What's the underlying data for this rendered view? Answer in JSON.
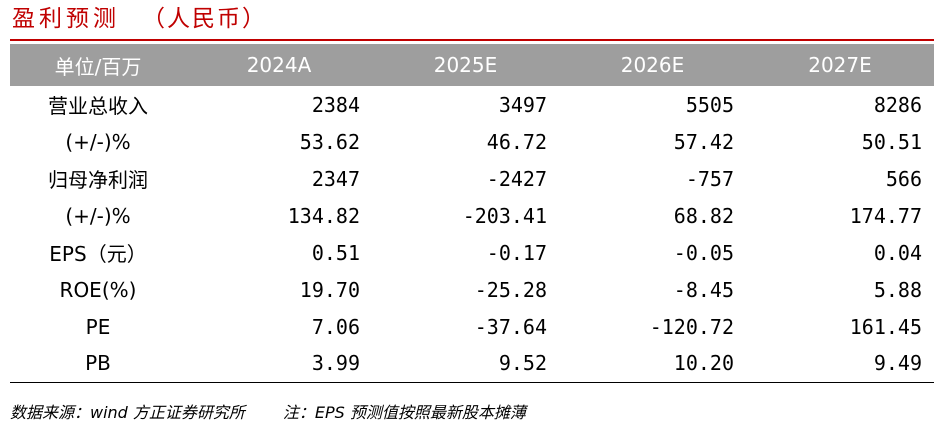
{
  "title": {
    "main": "盈利预测",
    "unit": "（人民币）"
  },
  "table": {
    "header": [
      "单位/百万",
      "2024A",
      "2025E",
      "2026E",
      "2027E"
    ],
    "rows": [
      {
        "label": "营业总收入",
        "values": [
          "2384",
          "3497",
          "5505",
          "8286"
        ]
      },
      {
        "label": "(+/-)%",
        "values": [
          "53.62",
          "46.72",
          "57.42",
          "50.51"
        ]
      },
      {
        "label": "归母净利润",
        "values": [
          "2347",
          "-2427",
          "-757",
          "566"
        ]
      },
      {
        "label": "(+/-)%",
        "values": [
          "134.82",
          "-203.41",
          "68.82",
          "174.77"
        ]
      },
      {
        "label": "EPS（元）",
        "values": [
          "0.51",
          "-0.17",
          "-0.05",
          "0.04"
        ]
      },
      {
        "label": "ROE(%)",
        "values": [
          "19.70",
          "-25.28",
          "-8.45",
          "5.88"
        ]
      },
      {
        "label": "PE",
        "values": [
          "7.06",
          "-37.64",
          "-120.72",
          "161.45"
        ]
      },
      {
        "label": "PB",
        "values": [
          "3.99",
          "9.52",
          "10.20",
          "9.49"
        ]
      }
    ]
  },
  "footer": {
    "source": "数据来源：wind 方正证券研究所",
    "note": "注：EPS 预测值按照最新股本摊薄"
  },
  "colors": {
    "accent": "#c00000",
    "header_bg": "#9e9e9e",
    "header_text": "#ffffff"
  }
}
